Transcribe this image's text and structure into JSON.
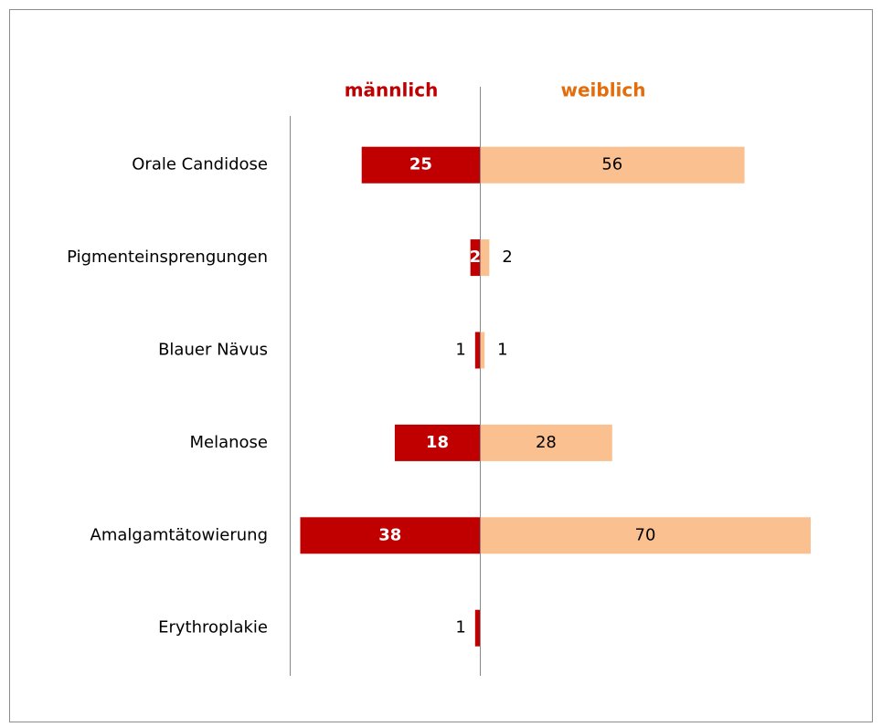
{
  "chart_data": {
    "type": "butterfly",
    "categories": [
      "Orale Candidose",
      "Pigmenteinsprengungen",
      "Blauer Nävus",
      "Melanose",
      "Amalgamtätowierung",
      "Erythroplakie"
    ],
    "series": [
      {
        "name": "männlich",
        "color": "#c00000",
        "values": [
          25,
          2,
          1,
          18,
          38,
          1
        ]
      },
      {
        "name": "weiblich",
        "color": "#fac090",
        "values": [
          56,
          2,
          1,
          28,
          70,
          null
        ]
      }
    ]
  }
}
